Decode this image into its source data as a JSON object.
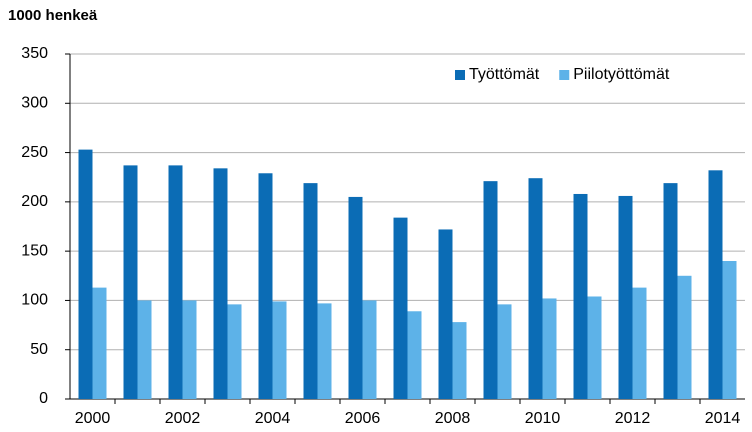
{
  "chart_data": {
    "type": "bar",
    "title": "1000 henkeä",
    "categories": [
      "2000",
      null,
      "2002",
      null,
      "2004",
      null,
      "2006",
      null,
      "2008",
      null,
      "2010",
      null,
      "2012",
      null,
      "2014"
    ],
    "series": [
      {
        "name": "Työttömät",
        "color": "#0b6cb5",
        "values": [
          253,
          237,
          237,
          234,
          229,
          219,
          205,
          184,
          172,
          221,
          224,
          208,
          206,
          219,
          232
        ]
      },
      {
        "name": "Piilotyöttömät",
        "color": "#5db2e8",
        "values": [
          113,
          100,
          100,
          96,
          99,
          97,
          100,
          89,
          78,
          96,
          102,
          104,
          113,
          125,
          140
        ]
      }
    ],
    "ylim": [
      0,
      350
    ],
    "yticks": [
      0,
      50,
      100,
      150,
      200,
      250,
      300,
      350
    ],
    "grid": true,
    "legend": "upper right"
  }
}
